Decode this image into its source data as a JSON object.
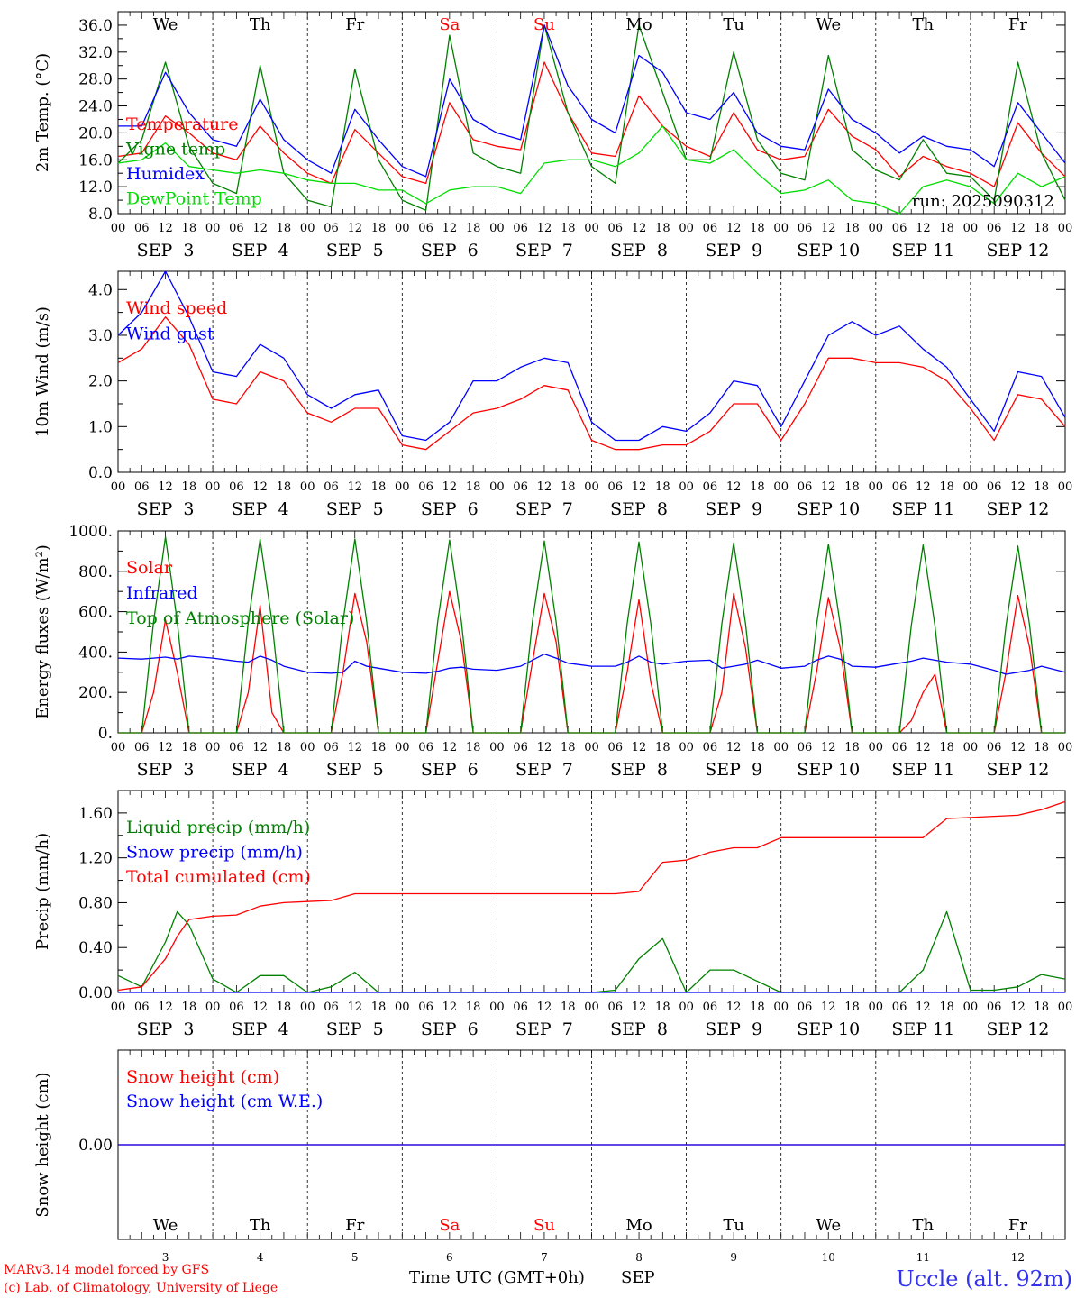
{
  "footer": {
    "credit_line1": "MARv3.14 model forced by GFS",
    "credit_line2": "(c) Lab. of Climatology, University of Liege",
    "xlabel": "Time UTC (GMT+0h)",
    "month": "SEP",
    "station": "Uccle (alt. 92m)"
  },
  "days": [
    {
      "dow": "We",
      "date": "SEP  3",
      "num": "3",
      "weekend": false
    },
    {
      "dow": "Th",
      "date": "SEP  4",
      "num": "4",
      "weekend": false
    },
    {
      "dow": "Fr",
      "date": "SEP  5",
      "num": "5",
      "weekend": false
    },
    {
      "dow": "Sa",
      "date": "SEP  6",
      "num": "6",
      "weekend": true
    },
    {
      "dow": "Su",
      "date": "SEP  7",
      "num": "7",
      "weekend": true
    },
    {
      "dow": "Mo",
      "date": "SEP  8",
      "num": "8",
      "weekend": false
    },
    {
      "dow": "Tu",
      "date": "SEP  9",
      "num": "9",
      "weekend": false
    },
    {
      "dow": "We",
      "date": "SEP 10",
      "num": "10",
      "weekend": false
    },
    {
      "dow": "Th",
      "date": "SEP 11",
      "num": "11",
      "weekend": false
    },
    {
      "dow": "Fr",
      "date": "SEP 12",
      "num": "12",
      "weekend": false
    }
  ],
  "hour_ticks": [
    "00",
    "06",
    "12",
    "18"
  ],
  "end_tick": "00",
  "colors": {
    "red": "#ff0000",
    "green": "#008000",
    "blue": "#0000ff",
    "lime": "#00dd00",
    "weekend": "#ff0000",
    "station": "#3333ee"
  },
  "chart_data": [
    {
      "type": "line",
      "ylabel": "2m Temp. (°C)",
      "ylim": [
        8,
        38
      ],
      "yticks": [
        "8.0",
        "12.0",
        "16.0",
        "20.0",
        "24.0",
        "28.0",
        "32.0",
        "36.0"
      ],
      "ytick_values": [
        8,
        12,
        16,
        20,
        24,
        28,
        32,
        36
      ],
      "annotation": "run: 2025090312",
      "x_hours": [
        0,
        6,
        12,
        18,
        24,
        30,
        36,
        42,
        48,
        54,
        60,
        66,
        72,
        78,
        84,
        90,
        96,
        102,
        108,
        114,
        120,
        126,
        132,
        138,
        144,
        150,
        156,
        162,
        168,
        174,
        180,
        186,
        192,
        198,
        204,
        210,
        216,
        222,
        228,
        234,
        240
      ],
      "series": [
        {
          "name": "Temperature",
          "color": "red",
          "values": [
            16.5,
            17,
            22.5,
            20,
            17,
            16,
            21,
            17,
            14,
            12.5,
            20.5,
            17,
            13.5,
            12.5,
            24.5,
            19,
            18,
            17.5,
            30.5,
            23,
            17,
            16.5,
            25.5,
            21,
            18,
            16.5,
            23,
            17.5,
            16,
            16.5,
            23.5,
            19.5,
            17.5,
            13.5,
            16.5,
            15,
            14,
            12,
            21.5,
            17,
            13.5
          ]
        },
        {
          "name": "Vigne temp",
          "color": "green",
          "values": [
            15.5,
            19,
            30.5,
            18,
            12.5,
            11,
            30,
            14,
            10,
            9,
            29.5,
            16,
            10,
            8.5,
            34.5,
            17,
            15,
            14,
            36,
            23,
            15,
            12.5,
            36,
            26,
            16,
            16,
            32,
            19,
            14,
            13,
            31.5,
            17.5,
            14.5,
            13,
            19,
            14,
            13.5,
            10,
            30.5,
            17,
            10
          ]
        },
        {
          "name": "Humidex",
          "color": "blue",
          "values": [
            21,
            21,
            29,
            23,
            19,
            18,
            25,
            19,
            16,
            14,
            23.5,
            19,
            15,
            13.5,
            28,
            22,
            20,
            19,
            36,
            27,
            22,
            20,
            31.5,
            29,
            23,
            22,
            26,
            20,
            18,
            17.5,
            26.5,
            22,
            20,
            17,
            19.5,
            18,
            17.5,
            15,
            24.5,
            20,
            15.5
          ]
        },
        {
          "name": "DewPoint Temp",
          "color": "lime",
          "values": [
            15.5,
            16,
            18.5,
            15,
            14.5,
            14,
            14.5,
            14,
            13,
            12.5,
            12.5,
            11.5,
            11.5,
            9.5,
            11.5,
            12,
            12,
            11,
            15.5,
            16,
            16,
            15,
            17,
            21,
            16,
            15.5,
            17.5,
            14,
            11,
            11.5,
            13,
            10,
            9.5,
            8,
            12,
            13,
            12,
            9.5,
            14,
            12,
            13.5
          ]
        }
      ]
    },
    {
      "type": "line",
      "ylabel": "10m Wind (m/s)",
      "ylim": [
        0,
        4.4
      ],
      "yticks": [
        "0.0",
        "1.0",
        "2.0",
        "3.0",
        "4.0"
      ],
      "ytick_values": [
        0,
        1,
        2,
        3,
        4
      ],
      "x_hours": [
        0,
        6,
        12,
        18,
        24,
        30,
        36,
        42,
        48,
        54,
        60,
        66,
        72,
        78,
        84,
        90,
        96,
        102,
        108,
        114,
        120,
        126,
        132,
        138,
        144,
        150,
        156,
        162,
        168,
        174,
        180,
        186,
        192,
        198,
        204,
        210,
        216,
        222,
        228,
        234,
        240
      ],
      "series": [
        {
          "name": "Wind speed",
          "color": "red",
          "values": [
            2.4,
            2.7,
            3.4,
            2.8,
            1.6,
            1.5,
            2.2,
            2,
            1.3,
            1.1,
            1.4,
            1.4,
            0.6,
            0.5,
            0.9,
            1.3,
            1.4,
            1.6,
            1.9,
            1.8,
            0.7,
            0.5,
            0.5,
            0.6,
            0.6,
            0.9,
            1.5,
            1.5,
            0.7,
            1.5,
            2.5,
            2.5,
            2.4,
            2.4,
            2.3,
            2,
            1.4,
            0.7,
            1.7,
            1.6,
            1
          ]
        },
        {
          "name": "Wind gust",
          "color": "blue",
          "values": [
            3,
            3.5,
            4.4,
            3.4,
            2.2,
            2.1,
            2.8,
            2.5,
            1.7,
            1.4,
            1.7,
            1.8,
            0.8,
            0.7,
            1.1,
            2,
            2,
            2.3,
            2.5,
            2.4,
            1.1,
            0.7,
            0.7,
            1,
            0.9,
            1.3,
            2,
            1.9,
            1,
            2,
            3,
            3.3,
            3,
            3.2,
            2.7,
            2.3,
            1.6,
            0.9,
            2.2,
            2.1,
            1.2
          ]
        }
      ]
    },
    {
      "type": "line",
      "ylabel": "Energy fluxes (W/m²)",
      "ylim": [
        0,
        1000
      ],
      "yticks": [
        "0.",
        "200.",
        "400.",
        "600.",
        "800.",
        "1000."
      ],
      "ytick_values": [
        0,
        200,
        400,
        600,
        800,
        1000
      ],
      "x_hours": [
        0,
        6,
        9,
        12,
        15,
        18,
        24,
        30,
        33,
        36,
        39,
        42,
        48,
        54,
        57,
        60,
        63,
        66,
        72,
        78,
        81,
        84,
        87,
        90,
        96,
        102,
        105,
        108,
        111,
        114,
        120,
        126,
        129,
        132,
        135,
        138,
        144,
        150,
        153,
        156,
        159,
        162,
        168,
        174,
        177,
        180,
        183,
        186,
        192,
        198,
        201,
        204,
        207,
        210,
        216,
        222,
        225,
        228,
        231,
        234,
        240
      ],
      "series": [
        {
          "name": "Solar",
          "color": "red",
          "values": [
            0,
            0,
            200,
            560,
            300,
            0,
            0,
            0,
            200,
            630,
            100,
            0,
            0,
            0,
            300,
            690,
            450,
            0,
            0,
            0,
            350,
            700,
            450,
            0,
            0,
            0,
            350,
            690,
            450,
            0,
            0,
            0,
            300,
            660,
            250,
            0,
            0,
            0,
            200,
            690,
            420,
            0,
            0,
            0,
            300,
            670,
            420,
            0,
            0,
            0,
            60,
            200,
            290,
            0,
            0,
            0,
            300,
            680,
            420,
            0,
            0
          ]
        },
        {
          "name": "Infrared",
          "color": "blue",
          "values": [
            370,
            365,
            370,
            375,
            365,
            380,
            370,
            355,
            350,
            380,
            360,
            330,
            300,
            295,
            300,
            355,
            330,
            320,
            300,
            295,
            305,
            320,
            325,
            315,
            310,
            330,
            360,
            390,
            370,
            345,
            330,
            330,
            350,
            380,
            350,
            340,
            355,
            360,
            320,
            330,
            340,
            360,
            320,
            330,
            360,
            380,
            365,
            330,
            325,
            345,
            355,
            370,
            360,
            350,
            340,
            310,
            290,
            300,
            310,
            330,
            300
          ]
        },
        {
          "name": "Top of Atmosphere (Solar)",
          "color": "green",
          "values": [
            0,
            0,
            550,
            970,
            550,
            0,
            0,
            0,
            550,
            960,
            550,
            0,
            0,
            0,
            550,
            960,
            550,
            0,
            0,
            0,
            550,
            955,
            550,
            0,
            0,
            0,
            550,
            950,
            550,
            0,
            0,
            0,
            540,
            945,
            540,
            0,
            0,
            0,
            540,
            940,
            540,
            0,
            0,
            0,
            535,
            935,
            535,
            0,
            0,
            0,
            530,
            930,
            530,
            0,
            0,
            0,
            530,
            925,
            530,
            0,
            0
          ]
        }
      ]
    },
    {
      "type": "line",
      "ylabel": "Precip (mm/h)",
      "ylim": [
        0,
        1.8
      ],
      "yticks": [
        "0.00",
        "0.40",
        "0.80",
        "1.20",
        "1.60"
      ],
      "ytick_values": [
        0,
        0.4,
        0.8,
        1.2,
        1.6
      ],
      "x_hours": [
        0,
        6,
        12,
        15,
        18,
        24,
        30,
        36,
        42,
        48,
        54,
        60,
        66,
        72,
        78,
        84,
        90,
        96,
        102,
        108,
        114,
        120,
        126,
        132,
        138,
        144,
        150,
        156,
        162,
        168,
        174,
        180,
        186,
        192,
        198,
        204,
        210,
        216,
        222,
        228,
        234,
        240
      ],
      "series": [
        {
          "name": "Liquid precip (mm/h)",
          "color": "green",
          "values": [
            0.15,
            0.05,
            0.45,
            0.72,
            0.6,
            0.12,
            0,
            0.15,
            0.15,
            0,
            0.05,
            0.18,
            0,
            0,
            0,
            0,
            0,
            0,
            0,
            0,
            0,
            0,
            0.02,
            0.3,
            0.48,
            0,
            0.2,
            0.2,
            0.1,
            0,
            0,
            0,
            0,
            0,
            0,
            0.2,
            0.72,
            0.02,
            0.02,
            0.05,
            0.16,
            0.12
          ]
        },
        {
          "name": "Snow precip (mm/h)",
          "color": "blue",
          "values": [
            0,
            0,
            0,
            0,
            0,
            0,
            0,
            0,
            0,
            0,
            0,
            0,
            0,
            0,
            0,
            0,
            0,
            0,
            0,
            0,
            0,
            0,
            0,
            0,
            0,
            0,
            0,
            0,
            0,
            0,
            0,
            0,
            0,
            0,
            0,
            0,
            0,
            0,
            0,
            0,
            0,
            0
          ]
        },
        {
          "name": "Total cumulated (cm)",
          "color": "red",
          "values": [
            0.02,
            0.05,
            0.3,
            0.5,
            0.65,
            0.68,
            0.69,
            0.77,
            0.8,
            0.81,
            0.82,
            0.88,
            0.88,
            0.88,
            0.88,
            0.88,
            0.88,
            0.88,
            0.88,
            0.88,
            0.88,
            0.88,
            0.88,
            0.9,
            1.16,
            1.18,
            1.25,
            1.29,
            1.29,
            1.38,
            1.38,
            1.38,
            1.38,
            1.38,
            1.38,
            1.38,
            1.55,
            1.56,
            1.57,
            1.58,
            1.63,
            1.7
          ]
        }
      ]
    },
    {
      "type": "line",
      "ylabel": "Snow height (cm)",
      "ylim": [
        -1,
        1
      ],
      "yticks": [
        "0.00"
      ],
      "ytick_values": [
        0
      ],
      "x_hours": [
        0,
        240
      ],
      "series": [
        {
          "name": "Snow height (cm)",
          "color": "red",
          "values": [
            0,
            0
          ]
        },
        {
          "name": "Snow height (cm W.E.)",
          "color": "blue",
          "values": [
            0,
            0
          ]
        }
      ]
    }
  ]
}
